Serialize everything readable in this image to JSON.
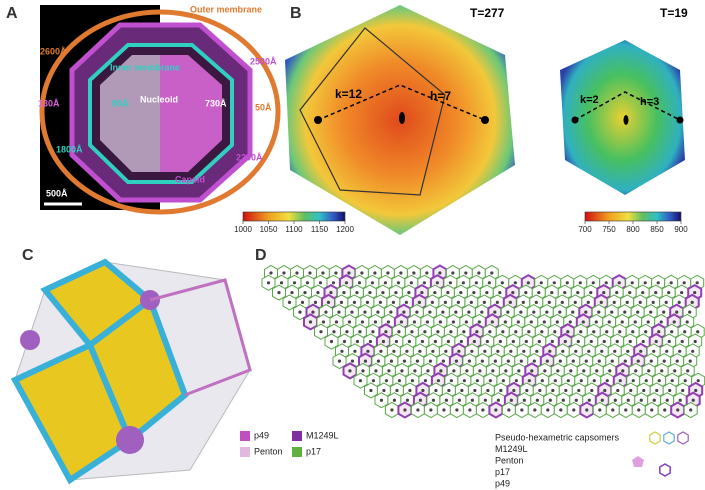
{
  "panel_a": {
    "label": "A",
    "outer_membrane": "Outer membrane",
    "inner_membrane": "Inner membrane",
    "nucleoid": "Nucleoid",
    "capsid": "Capsid",
    "d_2600": "2600Å",
    "d_2500": "2500Å",
    "d_130": "130Å",
    "d_80": "80Å",
    "d_1800": "1800Å",
    "d_50": "50Å",
    "d_730": "730Å",
    "d_2200": "2200Å",
    "scale": "500Å"
  },
  "panel_b": {
    "label": "B",
    "left": {
      "title": "T=277",
      "k": "k=12",
      "h": "h=7",
      "colorbar": {
        "lim": [
          1000,
          1200
        ],
        "ticks": [
          1000,
          1050,
          1100,
          1150,
          1200
        ]
      }
    },
    "right": {
      "title": "T=19",
      "k": "k=2",
      "h": "h=3",
      "colorbar": {
        "lim": [
          700,
          900
        ],
        "ticks": [
          700,
          750,
          800,
          850,
          900
        ]
      }
    }
  },
  "panel_c": {
    "label": "C",
    "legend": [
      "p49",
      "M1249L",
      "Penton",
      "p17"
    ]
  },
  "panel_d": {
    "label": "D",
    "legend": [
      "Pseudo-hexametric capsomers",
      "M1249L",
      "Penton",
      "p17",
      "p49"
    ]
  }
}
